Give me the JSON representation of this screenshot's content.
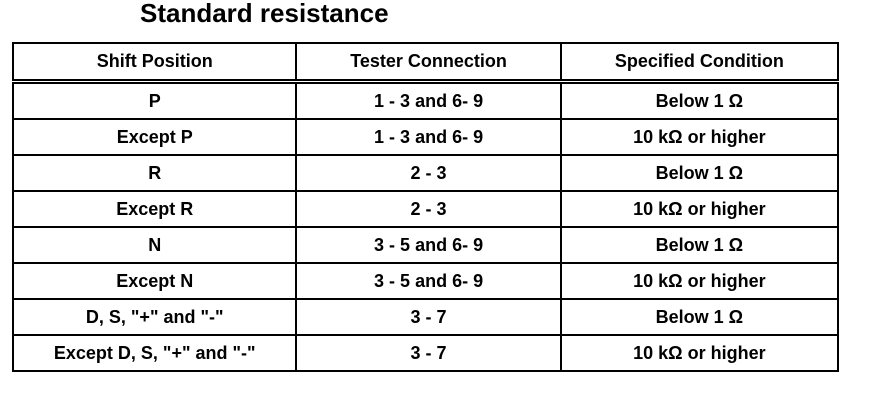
{
  "title": "Standard resistance",
  "table": {
    "headers": [
      "Shift Position",
      "Tester Connection",
      "Specified Condition"
    ],
    "rows": [
      [
        "P",
        "1 - 3 and 6- 9",
        "Below 1 Ω"
      ],
      [
        "Except P",
        "1 - 3 and 6- 9",
        "10 kΩ or higher"
      ],
      [
        "R",
        "2 - 3",
        "Below 1 Ω"
      ],
      [
        "Except R",
        "2 - 3",
        "10 kΩ or higher"
      ],
      [
        "N",
        "3 - 5 and 6- 9",
        "Below 1 Ω"
      ],
      [
        "Except N",
        "3 - 5 and 6- 9",
        "10 kΩ or higher"
      ],
      [
        "D, S, \"+\" and \"-\"",
        "3 - 7",
        "Below 1 Ω"
      ],
      [
        "Except D, S, \"+\" and \"-\"",
        "3 - 7",
        "10 kΩ or higher"
      ]
    ]
  }
}
